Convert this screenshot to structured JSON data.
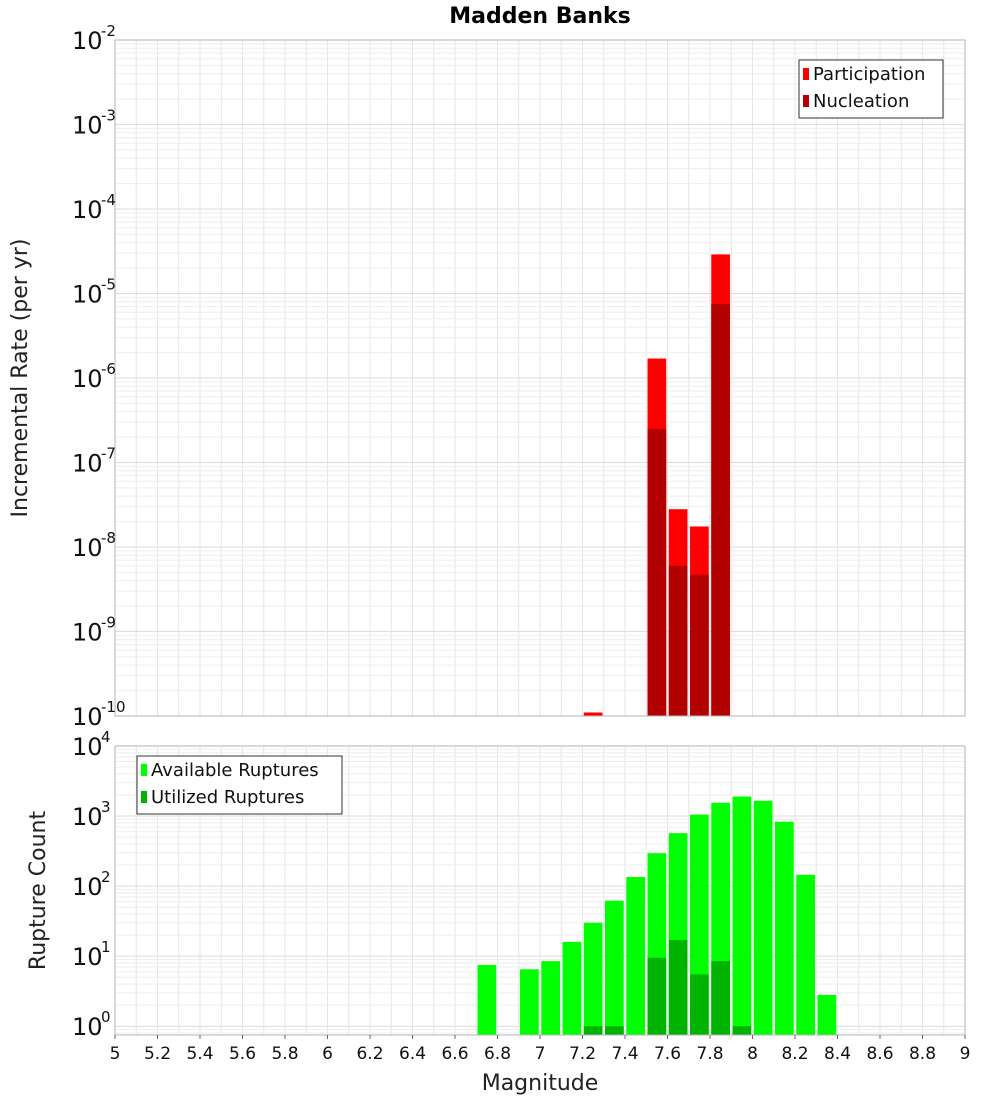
{
  "chart_data": [
    {
      "type": "bar",
      "title": "Madden Banks",
      "ylabel": "Incremental Rate (per yr)",
      "xlabel": "",
      "yscale": "log",
      "ylim": [
        1e-10,
        0.01
      ],
      "xlim": [
        5,
        9
      ],
      "yticks": [
        {
          "base": "10",
          "exp": "-10",
          "value": 1e-10
        },
        {
          "base": "10",
          "exp": "-9",
          "value": 1e-09
        },
        {
          "base": "10",
          "exp": "-8",
          "value": 1e-08
        },
        {
          "base": "10",
          "exp": "-7",
          "value": 1e-07
        },
        {
          "base": "10",
          "exp": "-6",
          "value": 1e-06
        },
        {
          "base": "10",
          "exp": "-5",
          "value": 1e-05
        },
        {
          "base": "10",
          "exp": "-4",
          "value": 0.0001
        },
        {
          "base": "10",
          "exp": "-3",
          "value": 0.001
        },
        {
          "base": "10",
          "exp": "-2",
          "value": 0.01
        }
      ],
      "grid": true,
      "legend_position": "top-right",
      "x": [
        7.25,
        7.55,
        7.65,
        7.75,
        7.85
      ],
      "series": [
        {
          "name": "Participation",
          "color": "#ff0000",
          "values": [
            1.1e-10,
            1.7e-06,
            2.8e-08,
            1.75e-08,
            2.9e-05
          ]
        },
        {
          "name": "Nucleation",
          "color": "#b30000",
          "values": [
            null,
            2.5e-07,
            6e-09,
            4.7e-09,
            7.5e-06
          ]
        }
      ]
    },
    {
      "type": "bar",
      "title": "",
      "ylabel": "Rupture Count",
      "xlabel": "Magnitude",
      "yscale": "log",
      "ylim": [
        0.75,
        10000
      ],
      "xlim": [
        5,
        9
      ],
      "yticks": [
        {
          "base": "10",
          "exp": "0",
          "value": 1
        },
        {
          "base": "10",
          "exp": "1",
          "value": 10
        },
        {
          "base": "10",
          "exp": "2",
          "value": 100
        },
        {
          "base": "10",
          "exp": "3",
          "value": 1000
        },
        {
          "base": "10",
          "exp": "4",
          "value": 10000
        }
      ],
      "xticks": [
        "5",
        "5.2",
        "5.4",
        "5.6",
        "5.8",
        "6",
        "6.2",
        "6.4",
        "6.6",
        "6.8",
        "7",
        "7.2",
        "7.4",
        "7.6",
        "7.8",
        "8",
        "8.2",
        "8.4",
        "8.6",
        "8.8",
        "9"
      ],
      "grid": true,
      "legend_position": "top-left",
      "x": [
        6.75,
        6.95,
        7.05,
        7.15,
        7.25,
        7.35,
        7.45,
        7.55,
        7.65,
        7.75,
        7.85,
        7.95,
        8.05,
        8.15,
        8.25,
        8.35
      ],
      "series": [
        {
          "name": "Available Ruptures",
          "color": "#00ff00",
          "values": [
            7.5,
            6.5,
            8.5,
            16,
            30,
            62,
            135,
            295,
            570,
            1050,
            1550,
            1900,
            1650,
            830,
            145,
            2.8
          ]
        },
        {
          "name": "Utilized Ruptures",
          "color": "#00b300",
          "values": [
            null,
            null,
            null,
            null,
            1,
            1,
            null,
            9.5,
            17,
            5.5,
            8.5,
            1,
            null,
            null,
            null,
            null
          ]
        }
      ]
    }
  ]
}
